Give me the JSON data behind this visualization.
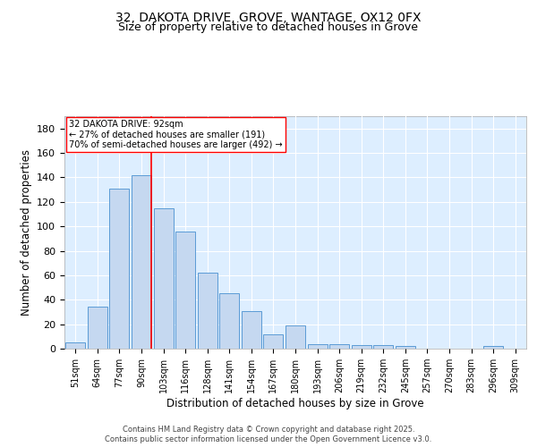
{
  "title_line1": "32, DAKOTA DRIVE, GROVE, WANTAGE, OX12 0FX",
  "title_line2": "Size of property relative to detached houses in Grove",
  "xlabel": "Distribution of detached houses by size in Grove",
  "ylabel": "Number of detached properties",
  "categories": [
    "51sqm",
    "64sqm",
    "77sqm",
    "90sqm",
    "103sqm",
    "116sqm",
    "128sqm",
    "141sqm",
    "154sqm",
    "167sqm",
    "180sqm",
    "193sqm",
    "206sqm",
    "219sqm",
    "232sqm",
    "245sqm",
    "257sqm",
    "270sqm",
    "283sqm",
    "296sqm",
    "309sqm"
  ],
  "values": [
    5,
    34,
    131,
    142,
    115,
    96,
    62,
    45,
    31,
    12,
    19,
    4,
    4,
    3,
    3,
    2,
    0,
    0,
    0,
    2,
    0
  ],
  "bar_color": "#c5d8f0",
  "bar_edge_color": "#5b9bd5",
  "red_line_index": 3,
  "ylim": [
    0,
    190
  ],
  "yticks": [
    0,
    20,
    40,
    60,
    80,
    100,
    120,
    140,
    160,
    180
  ],
  "annotation_text_line1": "32 DAKOTA DRIVE: 92sqm",
  "annotation_text_line2": "← 27% of detached houses are smaller (191)",
  "annotation_text_line3": "70% of semi-detached houses are larger (492) →",
  "footer_line1": "Contains HM Land Registry data © Crown copyright and database right 2025.",
  "footer_line2": "Contains public sector information licensed under the Open Government Licence v3.0.",
  "bar_background": "#ddeeff",
  "grid_color": "#ffffff",
  "fig_background": "#ffffff"
}
